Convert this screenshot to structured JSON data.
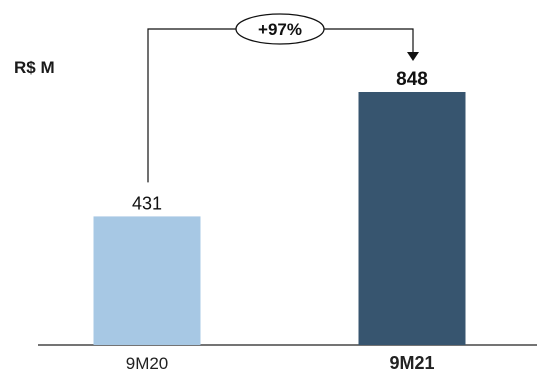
{
  "chart_data": {
    "type": "bar",
    "unit_label": "R$ M",
    "categories": [
      "9M20",
      "9M21"
    ],
    "values": [
      431,
      848
    ],
    "data_labels": [
      "431",
      "848"
    ],
    "colors": [
      "#a7c8e4",
      "#37556f"
    ],
    "bold_last": true,
    "growth_label": "+97%",
    "ylim": [
      0,
      900
    ]
  }
}
